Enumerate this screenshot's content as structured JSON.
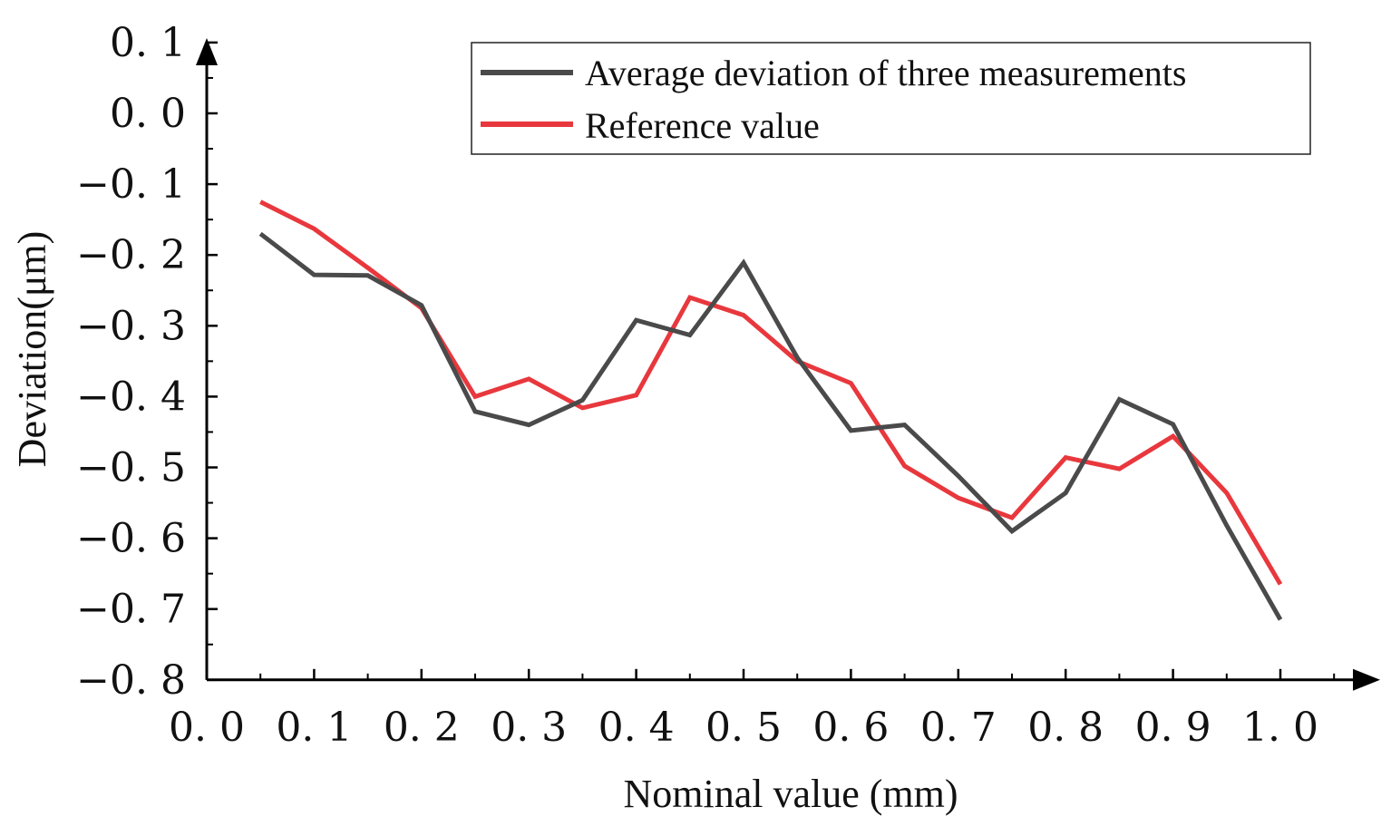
{
  "chart_data": {
    "type": "line",
    "title": "",
    "xlabel": "Nominal value (mm)",
    "ylabel": "Deviation(μm)",
    "xlim": [
      0.0,
      1.05
    ],
    "ylim": [
      -0.8,
      0.1
    ],
    "x_ticks": [
      "0.0",
      "0.1",
      "0.2",
      "0.3",
      "0.4",
      "0.5",
      "0.6",
      "0.7",
      "0.8",
      "0.9",
      "1.0"
    ],
    "x_tick_display": [
      "0. 0",
      "0. 1",
      "0. 2",
      "0. 3",
      "0. 4",
      "0. 5",
      "0. 6",
      "0. 7",
      "0. 8",
      "0. 9",
      "1. 0"
    ],
    "y_tick_values": [
      0.1,
      0.0,
      -0.1,
      -0.2,
      -0.3,
      -0.4,
      -0.5,
      -0.6,
      -0.7,
      -0.8
    ],
    "y_tick_display": [
      "0. 1",
      "0. 0",
      "−0. 1",
      "−0. 2",
      "−0. 3",
      "−0. 4",
      "−0. 5",
      "−0. 6",
      "−0. 7",
      "−0. 8"
    ],
    "grid": false,
    "legend_position": "top-right",
    "x": [
      0.05,
      0.1,
      0.15,
      0.2,
      0.25,
      0.3,
      0.35,
      0.4,
      0.45,
      0.5,
      0.55,
      0.6,
      0.65,
      0.7,
      0.75,
      0.8,
      0.85,
      0.9,
      0.95,
      1.0
    ],
    "series": [
      {
        "name": "Average deviation of three measurements",
        "color": "#4a4a4a",
        "values": [
          -0.17,
          -0.228,
          -0.229,
          -0.271,
          -0.421,
          -0.44,
          -0.405,
          -0.292,
          -0.313,
          -0.211,
          -0.345,
          -0.448,
          -0.44,
          -0.512,
          -0.59,
          -0.536,
          -0.404,
          -0.439,
          -0.582,
          -0.715
        ]
      },
      {
        "name": "Reference value",
        "color": "#e8383d",
        "values": [
          -0.125,
          -0.163,
          -0.218,
          -0.275,
          -0.4,
          -0.375,
          -0.416,
          -0.398,
          -0.26,
          -0.285,
          -0.35,
          -0.381,
          -0.498,
          -0.543,
          -0.571,
          -0.486,
          -0.502,
          -0.456,
          -0.536,
          -0.665
        ]
      }
    ]
  }
}
